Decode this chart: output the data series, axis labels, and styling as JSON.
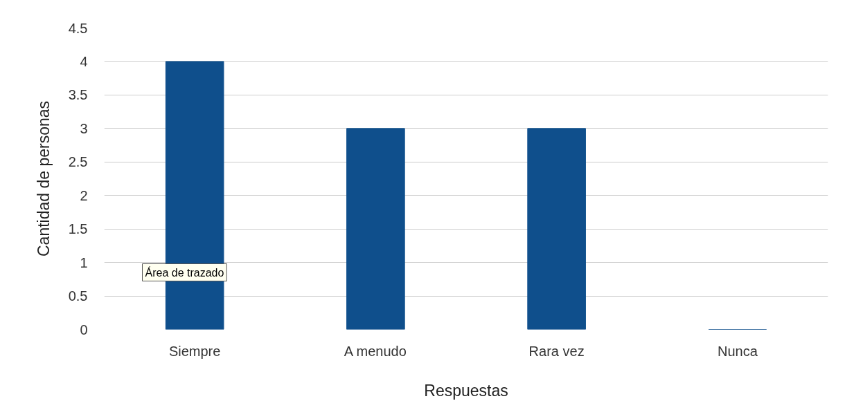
{
  "chart_data": {
    "type": "bar",
    "xlabel": "Respuestas",
    "ylabel": "Cantidad de personas",
    "categories": [
      "Siempre",
      "A menudo",
      "Rara vez",
      "Nunca"
    ],
    "values": [
      4,
      3,
      3,
      0
    ],
    "color": "#0f4f8c",
    "ylim": [
      0,
      4.5
    ],
    "yticks": [
      0,
      0.5,
      1,
      1.5,
      2,
      2.5,
      3,
      3.5,
      4,
      4.5
    ],
    "grid": "y",
    "annotations": [
      "Área de trazado"
    ]
  }
}
